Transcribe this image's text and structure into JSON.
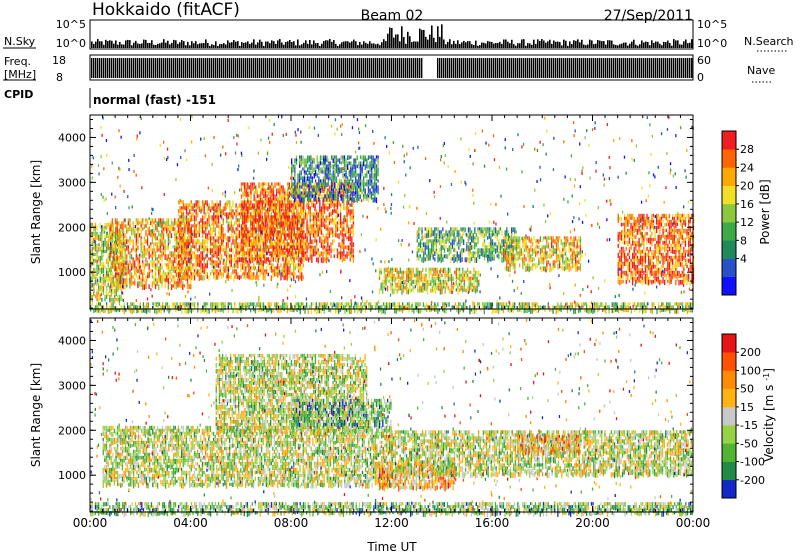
{
  "header": {
    "station": "Hokkaido (fitACF)",
    "beam": "Beam 02",
    "date": "27/Sep/2011"
  },
  "top_panels": {
    "nsky": {
      "label": "N.Sky",
      "tick_top": "10^5",
      "tick_bottom": "10^0"
    },
    "nsearch": {
      "label": "N.Search",
      "tick_top": "10^5",
      "tick_bottom": "10^0"
    },
    "freq": {
      "label_line1": "Freq.",
      "label_line2": "[MHz]",
      "tick_top": "18",
      "tick_bottom": "8"
    },
    "nave": {
      "label": "Nave",
      "tick_top": "60",
      "tick_bottom": "0"
    },
    "cpid": {
      "label": "CPID",
      "value": "normal (fast) -151"
    }
  },
  "chart_data": [
    {
      "type": "heatmap",
      "name": "power",
      "ylabel": "Slant Range [km]",
      "xlabel": "",
      "ylim": [
        180,
        4500
      ],
      "xlim_hours": [
        0,
        24
      ],
      "y_ticks": [
        "1000",
        "2000",
        "3000",
        "4000"
      ],
      "colorbar": {
        "label": "Power [dB]",
        "ticks": [
          "28",
          "24",
          "20",
          "16",
          "12",
          "8",
          "4"
        ],
        "colors": [
          "#1010ff",
          "#2850c8",
          "#1e8a5a",
          "#3caa46",
          "#8cc83c",
          "#f0e028",
          "#ffa800",
          "#ff6400",
          "#f01e1e"
        ]
      },
      "echo_regions": [
        {
          "t0": 0.0,
          "t1": 1.3,
          "r0": 400,
          "r1": 2100,
          "level": 0.55
        },
        {
          "t0": 0.8,
          "t1": 4.0,
          "r0": 700,
          "r1": 2200,
          "level": 0.7
        },
        {
          "t0": 3.5,
          "t1": 8.5,
          "r0": 900,
          "r1": 2600,
          "level": 0.8
        },
        {
          "t0": 6.0,
          "t1": 10.5,
          "r0": 1300,
          "r1": 3000,
          "level": 0.85
        },
        {
          "t0": 8.0,
          "t1": 11.5,
          "r0": 2600,
          "r1": 3600,
          "level": 0.3
        },
        {
          "t0": 11.5,
          "t1": 15.5,
          "r0": 600,
          "r1": 1100,
          "level": 0.6
        },
        {
          "t0": 13.0,
          "t1": 17.0,
          "r0": 1300,
          "r1": 2000,
          "level": 0.4
        },
        {
          "t0": 16.5,
          "t1": 19.5,
          "r0": 1100,
          "r1": 1800,
          "level": 0.65
        },
        {
          "t0": 21.0,
          "t1": 24.0,
          "r0": 800,
          "r1": 2300,
          "level": 0.85
        },
        {
          "t0": 0.0,
          "t1": 24.0,
          "r0": 180,
          "r1": 330,
          "level": 0.5
        }
      ]
    },
    {
      "type": "heatmap",
      "name": "velocity",
      "ylabel": "Slant Range [km]",
      "xlabel": "Time UT",
      "ylim": [
        180,
        4500
      ],
      "xlim_hours": [
        0,
        24
      ],
      "x_ticks": [
        "00:00",
        "04:00",
        "08:00",
        "12:00",
        "16:00",
        "20:00",
        "00:00"
      ],
      "y_ticks": [
        "1000",
        "2000",
        "3000",
        "4000"
      ],
      "colorbar": {
        "label": "Velocity [m s^-1]",
        "ticks": [
          "200",
          "100",
          "50",
          "15",
          "-15",
          "-50",
          "-100",
          "-200"
        ],
        "colors": [
          "#1428c8",
          "#1e8c46",
          "#50b432",
          "#96d246",
          "#c8c8c8",
          "#ffb414",
          "#ff8c00",
          "#ff5000",
          "#e61414"
        ]
      },
      "echo_regions": [
        {
          "t0": 0.5,
          "t1": 12.0,
          "r0": 800,
          "r1": 2100,
          "level": 0.45
        },
        {
          "t0": 5.0,
          "t1": 11.0,
          "r0": 2000,
          "r1": 3700,
          "level": 0.45
        },
        {
          "t0": 11.5,
          "t1": 14.5,
          "r0": 700,
          "r1": 1300,
          "level": 0.65
        },
        {
          "t0": 12.0,
          "t1": 24.0,
          "r0": 1000,
          "r1": 2000,
          "level": 0.45
        },
        {
          "t0": 17.0,
          "t1": 19.5,
          "r0": 1500,
          "r1": 1900,
          "level": 0.65
        },
        {
          "t0": 8.0,
          "t1": 12.0,
          "r0": 2100,
          "r1": 2700,
          "level": 0.3
        },
        {
          "t0": 0.0,
          "t1": 24.0,
          "r0": 180,
          "r1": 400,
          "level": 0.35
        }
      ]
    }
  ]
}
